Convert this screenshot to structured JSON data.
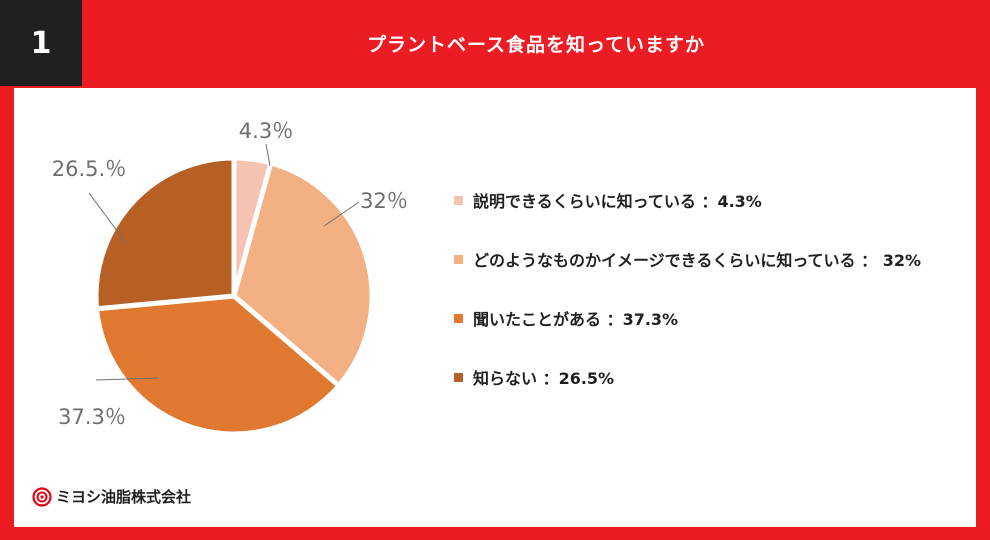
{
  "header": {
    "number": "1",
    "title": "プラントベース食品を知っていますか"
  },
  "chart_data": {
    "type": "pie",
    "title": "プラントベース食品を知っていますか",
    "slices": [
      {
        "label": "説明できるくらいに知っている",
        "value": 4.3,
        "display": "4.3％",
        "legend": "説明できるくらいに知っている ：4.3%",
        "color": "#f5c3b2"
      },
      {
        "label": "どのようなものかイメージできるくらいに知っている",
        "value": 32,
        "display": "32％",
        "legend": "どのようなものかイメージできるくらいに知っている ： 32%",
        "color": "#f2b083"
      },
      {
        "label": "聞いたことがある",
        "value": 37.3,
        "display": "37.3％",
        "legend": "聞いたことがある ：37.3%",
        "color": "#e07830"
      },
      {
        "label": "知らない",
        "value": 26.5,
        "display": "26.5.％",
        "legend": "知らない ：26.5%",
        "color": "#b76026"
      }
    ],
    "legend_position": "right"
  },
  "logo": {
    "text": "ミヨシ油脂株式会社",
    "icon": "miyoshi-logo-icon",
    "color": "#e60012"
  }
}
